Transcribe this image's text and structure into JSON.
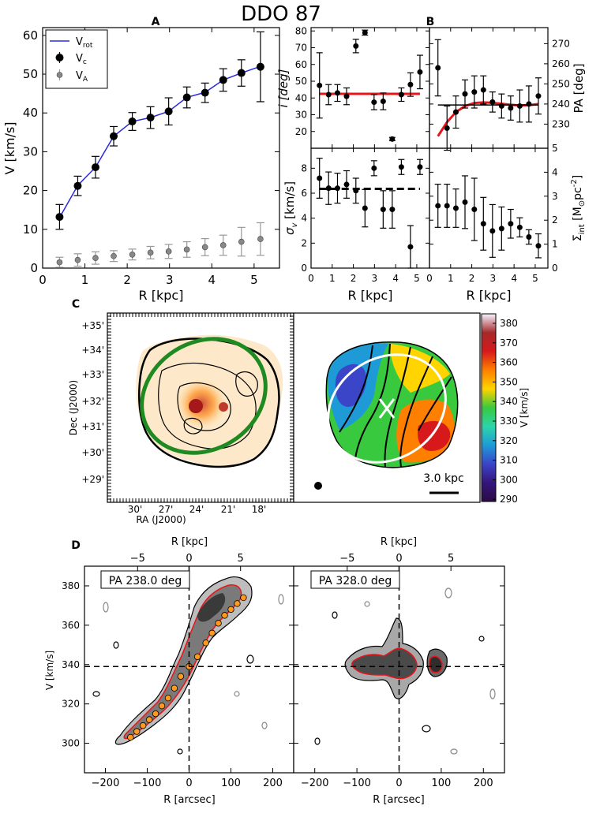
{
  "figure": {
    "title": "DDO 87",
    "panel_labels": [
      "A",
      "B",
      "C",
      "D"
    ]
  },
  "chart_data": [
    {
      "id": "A",
      "type": "scatter",
      "xlabel": "R [kpc]",
      "ylabel": "V [km/s]",
      "xlim": [
        0,
        5.6
      ],
      "ylim": [
        0,
        62
      ],
      "xticks": [
        "0",
        "1",
        "2",
        "3",
        "4",
        "5"
      ],
      "yticks": [
        "0",
        "10",
        "20",
        "30",
        "40",
        "50",
        "60"
      ],
      "legend": {
        "position": "top-left",
        "entries": [
          "V",
          "V",
          "V"
        ],
        "subscripts": [
          "rot",
          "c",
          "A"
        ]
      },
      "series": [
        {
          "name": "Vrot",
          "style": "line",
          "color": "#2a2adb",
          "x": [
            0.4,
            0.83,
            1.25,
            1.68,
            2.12,
            2.55,
            2.98,
            3.41,
            3.84,
            4.27,
            4.7,
            5.15
          ],
          "y": [
            13,
            21.3,
            26,
            34,
            37.8,
            38.8,
            40.4,
            44,
            45.3,
            48.5,
            50.3,
            52
          ]
        },
        {
          "name": "Vc",
          "style": "points",
          "color": "#000000",
          "x": [
            0.4,
            0.83,
            1.25,
            1.68,
            2.12,
            2.55,
            2.98,
            3.41,
            3.84,
            4.27,
            4.7,
            5.15
          ],
          "y": [
            13.2,
            21.2,
            26,
            34,
            37.8,
            38.8,
            40.4,
            44,
            45.2,
            48.5,
            50.3,
            51.9
          ],
          "err": [
            3.2,
            2.5,
            2.8,
            2.5,
            2.3,
            2.8,
            3.5,
            2.7,
            2.5,
            2.9,
            3.4,
            9
          ]
        },
        {
          "name": "VA",
          "style": "points",
          "color": "#999999",
          "x": [
            0.4,
            0.83,
            1.25,
            1.68,
            2.12,
            2.55,
            2.98,
            3.41,
            3.84,
            4.27,
            4.7,
            5.15
          ],
          "y": [
            1.5,
            2.1,
            2.6,
            3.1,
            3.5,
            4,
            4.3,
            4.8,
            5.4,
            5.9,
            6.8,
            7.5
          ],
          "err": [
            1.3,
            1.6,
            1.6,
            1.4,
            1.4,
            1.6,
            1.8,
            2,
            2.2,
            2.6,
            3.7,
            4.2
          ]
        }
      ]
    },
    {
      "id": "B-inclination",
      "type": "scatter",
      "ylabel": "i [deg]",
      "xlim": [
        0,
        5.6
      ],
      "ylim": [
        10,
        82
      ],
      "yticks": [
        "20",
        "30",
        "40",
        "50",
        "60",
        "70",
        "80"
      ],
      "x": [
        0.4,
        0.83,
        1.25,
        1.68,
        2.12,
        2.55,
        2.98,
        3.41,
        3.84,
        4.27,
        4.7,
        5.15
      ],
      "y": [
        47.5,
        42,
        43,
        41,
        71,
        79,
        37.5,
        38,
        15.5,
        42,
        48,
        55.5
      ],
      "err": [
        19.5,
        6,
        5,
        5,
        4,
        1.5,
        4.5,
        5,
        1,
        4,
        7,
        10
      ],
      "fit_line": {
        "x": [
          0.4,
          5.15
        ],
        "y": [
          42.5,
          42.5
        ],
        "color": "#e8141a"
      }
    },
    {
      "id": "B-position-angle",
      "type": "scatter",
      "ylabel": "PA [deg]",
      "xlim": [
        0,
        5.6
      ],
      "ylim": [
        218,
        278
      ],
      "yticks": [
        "230",
        "240",
        "250",
        "260",
        "270"
      ],
      "x": [
        0.4,
        0.83,
        1.25,
        1.68,
        2.12,
        2.55,
        2.98,
        3.41,
        3.84,
        4.27,
        4.7,
        5.15
      ],
      "y": [
        258,
        228,
        236,
        245,
        246,
        247,
        241,
        239,
        238,
        239,
        240,
        244
      ],
      "err": [
        14,
        11,
        8,
        7,
        8,
        7,
        5,
        6,
        6,
        8,
        9,
        9
      ],
      "fit_line": {
        "x": [
          0.4,
          0.83,
          1.25,
          1.68,
          2.12,
          2.55,
          2.98,
          3.41,
          3.84,
          4.27,
          4.7,
          5.15
        ],
        "y": [
          224,
          231,
          236,
          239,
          240.5,
          240.8,
          240.6,
          240.1,
          239.6,
          239.3,
          239.4,
          240
        ],
        "color": "#e8141a"
      },
      "ref_line": {
        "x": [
          0.4,
          5.15
        ],
        "y": [
          239.5,
          239.5
        ],
        "color": "#000000"
      }
    },
    {
      "id": "B-dispersion",
      "type": "scatter",
      "ylabel": "σ",
      "ylabel_sub": "v",
      "ylabel_units": " [km/s]",
      "xlabel": "R [kpc]",
      "xlim": [
        0,
        5.6
      ],
      "ylim": [
        0,
        9.6
      ],
      "xticks": [
        "0",
        "1",
        "2",
        "3",
        "4",
        "5"
      ],
      "yticks": [
        "0",
        "2",
        "4",
        "6",
        "8"
      ],
      "x": [
        0.4,
        0.83,
        1.25,
        1.68,
        2.12,
        2.55,
        2.98,
        3.41,
        3.84,
        4.27,
        4.7,
        5.15
      ],
      "y": [
        7.2,
        6.4,
        6.4,
        6.7,
        6.2,
        4.8,
        8,
        4.7,
        4.7,
        8.1,
        1.7,
        8.1
      ],
      "err": [
        1.6,
        1.3,
        1.2,
        1.1,
        1,
        1.5,
        0.6,
        1.5,
        1.5,
        0.6,
        1.7,
        0.6
      ],
      "mean_line": {
        "x": [
          0.4,
          5.15
        ],
        "y": [
          6.35,
          6.35
        ],
        "style": "dashed"
      }
    },
    {
      "id": "B-surface-density",
      "type": "scatter",
      "ylabel": "Σ",
      "ylabel_sub": "int",
      "ylabel_units": " [M",
      "ylabel_sub2": "⊙",
      "ylabel_tail": "pc",
      "ylabel_sup": "-2",
      "ylabel_close": "]",
      "xlabel": "R [kpc]",
      "xlim": [
        0,
        5.6
      ],
      "ylim": [
        0,
        5
      ],
      "xticks": [
        "0",
        "1",
        "2",
        "3",
        "4",
        "5"
      ],
      "yticks": [
        "0",
        "1",
        "2",
        "3",
        "4",
        "5"
      ],
      "x": [
        0.4,
        0.83,
        1.25,
        1.68,
        2.12,
        2.55,
        2.98,
        3.41,
        3.84,
        4.27,
        4.7,
        5.15
      ],
      "y": [
        2.6,
        2.6,
        2.5,
        2.75,
        2.45,
        1.85,
        1.55,
        1.65,
        1.85,
        1.7,
        1.3,
        0.93
      ],
      "err": [
        0.9,
        0.9,
        0.8,
        1.1,
        1.3,
        1.1,
        1.1,
        0.9,
        0.6,
        0.4,
        0.3,
        0.5
      ]
    },
    {
      "id": "C-moment-maps",
      "type": "heatmap",
      "xlabel": "RA (J2000)",
      "ylabel": "Dec (J2000)",
      "xticks": [
        "30'",
        "27'",
        "24'",
        "21'",
        "18'"
      ],
      "yticks": [
        "+35'",
        "+34'",
        "+33'",
        "+32'",
        "+31'",
        "+30'",
        "+29'"
      ],
      "scale_bar": "3.0 kpc",
      "colorbar": {
        "label": "V [km/s]",
        "ticks": [
          "380",
          "370",
          "360",
          "350",
          "340",
          "330",
          "320",
          "310",
          "300",
          "290"
        ],
        "stops": [
          "#f7f3ff",
          "#a52a2a",
          "#d7191c",
          "#ff7f00",
          "#ffd400",
          "#39c93f",
          "#2bd5a9",
          "#1e9bd6",
          "#3a45c8",
          "#35157a",
          "#2b0b45"
        ]
      },
      "ellipse_color_left": "#1f8a22",
      "ellipse_color_right": "#ffffff"
    },
    {
      "id": "D-position-velocity",
      "type": "heatmap",
      "xlabel": "R [arcsec]",
      "top_xlabel": "R [kpc]",
      "ylabel": "V [km/s]",
      "xlim": [
        -250,
        250
      ],
      "ylim": [
        285,
        390
      ],
      "xticks": [
        "−200",
        "−100",
        "0",
        "100",
        "200"
      ],
      "top_xticks": [
        "−5",
        "0",
        "5"
      ],
      "yticks": [
        "300",
        "320",
        "340",
        "360",
        "380"
      ],
      "systemic_velocity": 339,
      "panels": [
        {
          "label": "PA 238.0 deg",
          "rotation_points": {
            "x": [
              -140,
              -125,
              -110,
              -95,
              -80,
              -65,
              -50,
              -35,
              -20,
              0,
              20,
              40,
              55,
              70,
              85,
              100,
              115,
              130
            ],
            "y": [
              303,
              306,
              309,
              312,
              315,
              319,
              323,
              328,
              334,
              339,
              344,
              351,
              356,
              361,
              365,
              368,
              371,
              374
            ]
          }
        },
        {
          "label": "PA 328.0 deg"
        }
      ]
    }
  ]
}
